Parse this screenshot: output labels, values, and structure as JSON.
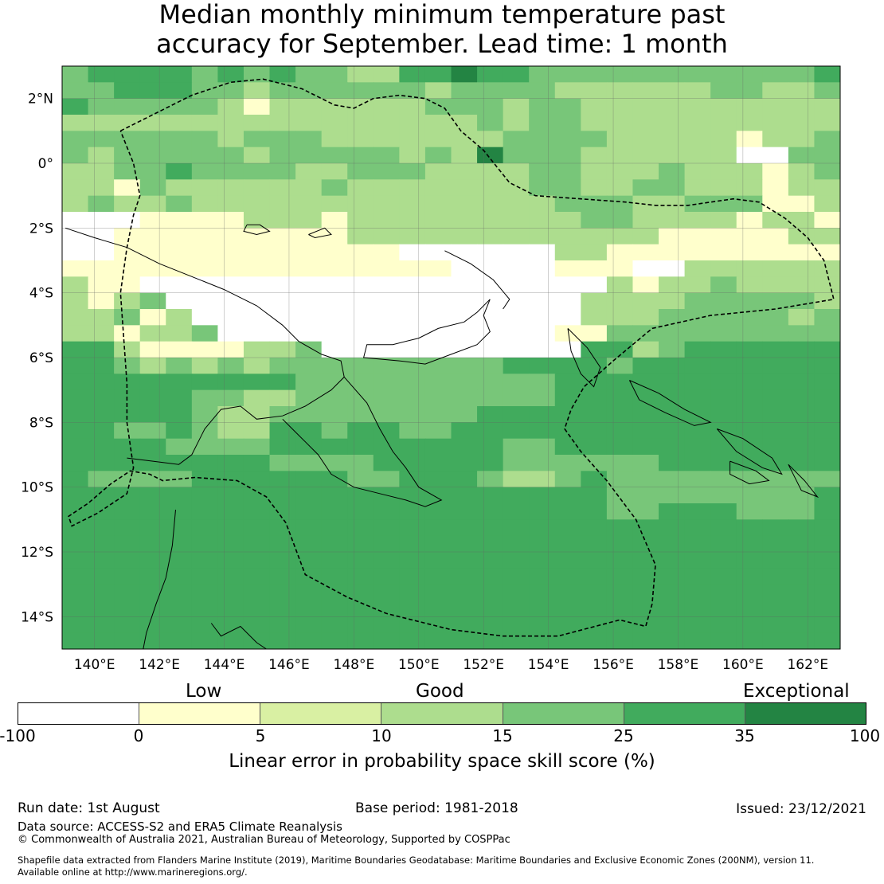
{
  "title": {
    "line1": "Median monthly minimum temperature past",
    "line2": "accuracy for September. Lead time: 1 month"
  },
  "map": {
    "lon_ticks": [
      "140°E",
      "142°E",
      "144°E",
      "146°E",
      "148°E",
      "150°E",
      "152°E",
      "154°E",
      "156°E",
      "158°E",
      "160°E",
      "162°E"
    ],
    "lat_ticks": [
      "2°N",
      "0°",
      "2°S",
      "4°S",
      "6°S",
      "8°S",
      "10°S",
      "12°S",
      "14°S"
    ],
    "lon_range": [
      139,
      163
    ],
    "lat_range": [
      -15,
      3
    ],
    "grid_cell_deg": 0.8,
    "skill_grid": [
      "DEEEEDEDEDDCCEEFEEDDDDDDDDDDDE",
      "DDEEEDDCDDDDDDCDDDDCCCCCCDDCCD",
      "EDDDDDCBCCCCCCDDDCDDCCCCCCCCCC",
      "CCCCCCCCCCCCCCCCDCDDCCCCCCCCCC",
      "DDDDDDCDDDCCCCCCCDDDDCCCCCBCCD",
      "DCDDDDDCDDDDDCDCFDDDCCCCCCAADD",
      "CCDDEDDDDCCDDDCCCCDDCCCDCCCBCD",
      "CCBDCCCCCCDCCCCCCCDDCCDDCCCBCC",
      "CDCCDCCCCCCCCCCCCCCDDDCCDDDBBC",
      "AAABBBBCCCBCCCCCCCCCDDCCCCBCCB",
      "AABBBBBBBBBCCCCCCCCCCCCBBBBBCC",
      "AABBBBBBBBBBBAAAAAACCBBBBBBBBB",
      "BBBBBBBBBBBBBBBAAAABBBAACCCCCC",
      "CBBAAAAAAAAAAAAAAAAAACBCCDCCCC",
      "CBCDAAAAAAAAAAAAAAAACCCCDDDDDC",
      "CCDBCAAAAAAAAAAAAAAACCCDDDDDCD",
      "CCBCCDAAAAAAAAAAAAABBDDDDDDDDD",
      "EECBBBBCCDAAAAAAAAAAEECDEEEEEE",
      "EEDCDCDCDDDDDDDDDEEEEDEEEEEEEE",
      "EEEEEEEEEDDDDDDDDDDEEEEEEEEEEE",
      "EEEEEDDCCDDDDDDDDDDEEEEEEEEEEE",
      "EEEEEDCCDDDDDDDDEEEEEEEEEEEEEE",
      "EEDDEDCCEEDEEDDEEEEEEEEEEEEEEE",
      "EEEEDDDDEEEEEEEEEDDEEEEEEEEEEE",
      "EEEEEEEEDDDDEEEEEDDDDDDEEEEEEE",
      "EDDDDEEEEEEDDEEEDCCDEDDDDDDDDD",
      "EEEEEEEEEEEEEEEEEEEEEDDDDDDDDE",
      "EEEEEEEEEEEEEEEEEEEEEDDEEEDDDE",
      "EEEEEEEEEEEEEEEEEEEEEEEEEEEEEE",
      "EEEEEEEEEEEEEEEEEEEEEEEEEEEEEE",
      "EEEEEEEEEEEEEEEEEEEEEEEEEEEEEE",
      "EEEEEEEEEEEEEEEEEEEEEEEEEEEEEE",
      "EEEEEEEEEEEEEEEEEEEEEEEEEEEEEE",
      "EEEEEEEEEEEEEEEEEEEEEEEEEEEEEE",
      "EEEEEEEEEEEEEEEEEEEEEEEEEEEEEE",
      "EEEEEEEEEEEEEEEEEEEEEEEEEEEEEE"
    ],
    "land_outlines_note": "",
    "coastlines": [
      [
        [
          139.1,
          -2.0
        ],
        [
          140.0,
          -2.3
        ],
        [
          141.0,
          -2.6
        ],
        [
          142.0,
          -3.1
        ],
        [
          143.0,
          -3.5
        ],
        [
          144.0,
          -3.9
        ],
        [
          145.0,
          -4.4
        ],
        [
          145.8,
          -5.0
        ],
        [
          146.3,
          -5.5
        ],
        [
          147.0,
          -5.9
        ],
        [
          147.6,
          -6.1
        ],
        [
          147.7,
          -6.6
        ],
        [
          147.3,
          -7.0
        ],
        [
          146.5,
          -7.5
        ],
        [
          145.8,
          -7.8
        ],
        [
          145.0,
          -7.9
        ],
        [
          144.5,
          -7.5
        ],
        [
          143.9,
          -7.6
        ],
        [
          143.4,
          -8.2
        ],
        [
          143.0,
          -9.0
        ],
        [
          142.6,
          -9.3
        ],
        [
          141.8,
          -9.2
        ],
        [
          141.0,
          -9.1
        ]
      ],
      [
        [
          147.7,
          -6.6
        ],
        [
          148.4,
          -7.4
        ],
        [
          148.8,
          -8.2
        ],
        [
          149.2,
          -8.9
        ],
        [
          149.6,
          -9.4
        ],
        [
          150.0,
          -10.0
        ],
        [
          150.7,
          -10.4
        ],
        [
          150.2,
          -10.6
        ],
        [
          149.6,
          -10.4
        ],
        [
          148.8,
          -10.2
        ],
        [
          148.0,
          -10.0
        ],
        [
          147.3,
          -9.6
        ],
        [
          146.9,
          -9.0
        ],
        [
          146.5,
          -8.6
        ],
        [
          146.1,
          -8.2
        ],
        [
          145.8,
          -7.9
        ]
      ],
      [
        [
          142.5,
          -10.7
        ],
        [
          142.4,
          -11.8
        ],
        [
          142.2,
          -12.8
        ],
        [
          141.9,
          -13.6
        ],
        [
          141.6,
          -14.5
        ],
        [
          141.5,
          -15.0
        ]
      ],
      [
        [
          143.6,
          -14.2
        ],
        [
          143.9,
          -14.6
        ],
        [
          144.5,
          -14.3
        ],
        [
          145.0,
          -14.8
        ],
        [
          145.3,
          -15.0
        ]
      ],
      [
        [
          150.8,
          -2.7
        ],
        [
          151.6,
          -3.1
        ],
        [
          152.3,
          -3.6
        ],
        [
          152.8,
          -4.2
        ],
        [
          152.6,
          -4.5
        ]
      ],
      [
        [
          152.2,
          -4.2
        ],
        [
          151.8,
          -4.6
        ],
        [
          151.4,
          -4.9
        ],
        [
          150.6,
          -5.1
        ],
        [
          150.0,
          -5.4
        ],
        [
          149.2,
          -5.6
        ],
        [
          148.4,
          -5.6
        ],
        [
          148.3,
          -6.0
        ],
        [
          149.4,
          -6.1
        ],
        [
          150.2,
          -6.2
        ],
        [
          151.0,
          -5.9
        ],
        [
          151.8,
          -5.6
        ],
        [
          152.2,
          -5.2
        ],
        [
          152.0,
          -4.7
        ],
        [
          152.2,
          -4.2
        ]
      ],
      [
        [
          154.6,
          -5.1
        ],
        [
          155.2,
          -5.7
        ],
        [
          155.6,
          -6.3
        ],
        [
          155.4,
          -6.9
        ],
        [
          155.0,
          -6.5
        ],
        [
          154.7,
          -5.8
        ],
        [
          154.6,
          -5.1
        ]
      ],
      [
        [
          156.5,
          -6.7
        ],
        [
          157.4,
          -7.1
        ],
        [
          158.2,
          -7.6
        ],
        [
          159.0,
          -8.0
        ],
        [
          158.5,
          -8.1
        ],
        [
          157.6,
          -7.7
        ],
        [
          156.8,
          -7.3
        ],
        [
          156.5,
          -6.7
        ]
      ],
      [
        [
          159.2,
          -8.2
        ],
        [
          160.0,
          -8.5
        ],
        [
          160.9,
          -9.1
        ],
        [
          161.2,
          -9.6
        ],
        [
          160.6,
          -9.4
        ],
        [
          159.8,
          -8.9
        ],
        [
          159.2,
          -8.2
        ]
      ],
      [
        [
          159.6,
          -9.2
        ],
        [
          160.4,
          -9.5
        ],
        [
          160.8,
          -9.8
        ],
        [
          160.2,
          -9.9
        ],
        [
          159.6,
          -9.6
        ],
        [
          159.6,
          -9.2
        ]
      ],
      [
        [
          161.4,
          -9.3
        ],
        [
          161.9,
          -9.8
        ],
        [
          162.3,
          -10.3
        ],
        [
          161.8,
          -10.1
        ],
        [
          161.4,
          -9.3
        ]
      ],
      [
        [
          144.7,
          -1.9
        ],
        [
          145.1,
          -1.9
        ],
        [
          145.4,
          -2.1
        ],
        [
          145.0,
          -2.2
        ],
        [
          144.6,
          -2.1
        ],
        [
          144.7,
          -1.9
        ]
      ],
      [
        [
          146.6,
          -2.2
        ],
        [
          147.1,
          -2.0
        ],
        [
          147.3,
          -2.2
        ],
        [
          146.8,
          -2.3
        ],
        [
          146.6,
          -2.2
        ]
      ]
    ],
    "eez_boundary": [
      [
        140.8,
        1.0
      ],
      [
        141.8,
        1.5
      ],
      [
        143.0,
        2.1
      ],
      [
        144.2,
        2.5
      ],
      [
        145.2,
        2.6
      ],
      [
        146.4,
        2.3
      ],
      [
        147.4,
        1.8
      ],
      [
        148.0,
        1.7
      ],
      [
        148.6,
        2.0
      ],
      [
        149.4,
        2.1
      ],
      [
        150.2,
        2.0
      ],
      [
        150.8,
        1.7
      ],
      [
        151.3,
        1.0
      ],
      [
        152.0,
        0.4
      ],
      [
        152.8,
        -0.6
      ],
      [
        153.6,
        -1.0
      ],
      [
        155.0,
        -1.1
      ],
      [
        156.4,
        -1.2
      ],
      [
        157.3,
        -1.3
      ],
      [
        158.3,
        -1.3
      ],
      [
        159.0,
        -1.2
      ],
      [
        159.7,
        -1.1
      ],
      [
        160.5,
        -1.2
      ],
      [
        161.3,
        -1.7
      ],
      [
        162.0,
        -2.3
      ],
      [
        162.5,
        -3.0
      ],
      [
        162.8,
        -4.2
      ],
      [
        161.0,
        -4.5
      ],
      [
        159.0,
        -4.7
      ],
      [
        157.2,
        -5.1
      ],
      [
        156.0,
        -6.1
      ],
      [
        155.1,
        -6.9
      ],
      [
        154.7,
        -7.6
      ],
      [
        154.5,
        -8.2
      ],
      [
        155.0,
        -8.9
      ],
      [
        155.8,
        -9.8
      ],
      [
        156.7,
        -11.0
      ],
      [
        157.3,
        -12.4
      ],
      [
        157.2,
        -13.6
      ],
      [
        157.0,
        -14.3
      ],
      [
        156.2,
        -14.1
      ],
      [
        154.3,
        -14.6
      ],
      [
        152.6,
        -14.6
      ],
      [
        151.0,
        -14.4
      ],
      [
        149.0,
        -13.9
      ],
      [
        147.8,
        -13.4
      ],
      [
        146.5,
        -12.7
      ],
      [
        145.9,
        -11.1
      ],
      [
        145.3,
        -10.3
      ],
      [
        144.4,
        -9.8
      ],
      [
        143.1,
        -9.7
      ],
      [
        142.1,
        -9.8
      ],
      [
        141.7,
        -9.6
      ],
      [
        141.1,
        -9.5
      ],
      [
        140.5,
        -9.9
      ],
      [
        139.8,
        -10.5
      ],
      [
        139.2,
        -10.9
      ],
      [
        139.3,
        -11.2
      ],
      [
        140.1,
        -10.8
      ],
      [
        141.0,
        -10.2
      ],
      [
        141.2,
        -9.4
      ],
      [
        141.0,
        -8.0
      ],
      [
        141.0,
        -6.8
      ],
      [
        140.8,
        -4.0
      ],
      [
        141.0,
        -2.6
      ],
      [
        141.2,
        -1.6
      ],
      [
        141.4,
        -1.0
      ],
      [
        141.2,
        0.0
      ],
      [
        140.8,
        1.0
      ]
    ]
  },
  "colorbar": {
    "category_labels": [
      "Low",
      "Good",
      "Exceptional"
    ],
    "tick_labels": [
      "-100",
      "0",
      "5",
      "10",
      "15",
      "25",
      "35",
      "100"
    ],
    "colors": [
      "#ffffff",
      "#ffffcc",
      "#d9f0a3",
      "#addd8e",
      "#78c679",
      "#41ab5d",
      "#238443"
    ],
    "title": "Linear error in probability space skill score (%)"
  },
  "footer": {
    "run_date": "Run date: 1st August",
    "base_period": "Base period: 1981-2018",
    "issued": "Issued: 23/12/2021",
    "data_source": "Data source: ACCESS-S2 and ERA5 Climate Reanalysis",
    "copyright": "© Commonwealth of Australia 2021, Australian Bureau of Meteorology, Supported by COSPPac",
    "shapefile_line1": "Shapefile data extracted from Flanders Marine Institute (2019), Maritime Boundaries Geodatabase: Maritime Boundaries and Exclusive Economic Zones (200NM), version 11.",
    "shapefile_line2": "Available online at http://www.marineregions.org/."
  }
}
